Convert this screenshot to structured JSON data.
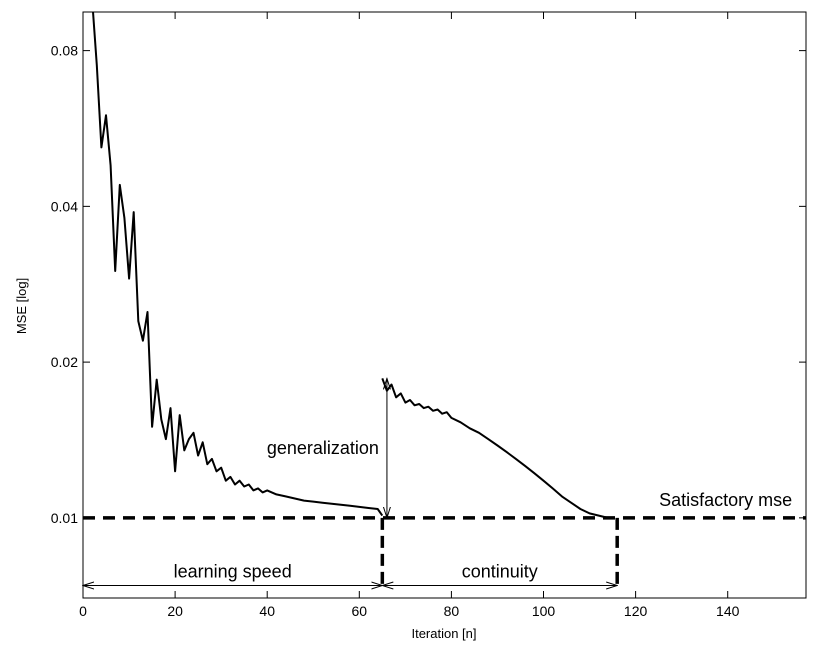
{
  "chart_data": {
    "type": "line",
    "xlabel": "Iteration [n]",
    "ylabel": "MSE [log]",
    "xlim": [
      0,
      157
    ],
    "ylim": [
      0.007,
      0.095
    ],
    "xscale": "linear",
    "yscale": "log",
    "xticks": [
      0,
      20,
      40,
      60,
      80,
      100,
      120,
      140
    ],
    "yticks": [
      0.01,
      0.02,
      0.04,
      0.08
    ],
    "ytick_labels": [
      "0.01",
      "0.02",
      "0.04",
      "0.08"
    ],
    "grid": false,
    "series": [
      {
        "style": "solid",
        "x": [
          2,
          3,
          4,
          5,
          6,
          7,
          8,
          9,
          10,
          11,
          12,
          13,
          14,
          15,
          16,
          17,
          18,
          19,
          20,
          21,
          22,
          23,
          24,
          25,
          26,
          27,
          28,
          29,
          30,
          31,
          32,
          33,
          34,
          35,
          36,
          37,
          38,
          39,
          40,
          42,
          44,
          46,
          48,
          50,
          52,
          54,
          56,
          58,
          60,
          62,
          64,
          65
        ],
        "y": [
          0.1,
          0.075,
          0.052,
          0.06,
          0.048,
          0.03,
          0.044,
          0.038,
          0.029,
          0.039,
          0.024,
          0.022,
          0.025,
          0.015,
          0.0185,
          0.0155,
          0.0142,
          0.0163,
          0.0123,
          0.0158,
          0.0135,
          0.0142,
          0.0146,
          0.0132,
          0.014,
          0.0127,
          0.013,
          0.0123,
          0.0125,
          0.0118,
          0.012,
          0.0116,
          0.0118,
          0.0115,
          0.0116,
          0.0113,
          0.0114,
          0.0112,
          0.0113,
          0.0111,
          0.011,
          0.0109,
          0.0108,
          0.01075,
          0.0107,
          0.01065,
          0.0106,
          0.01055,
          0.0105,
          0.01045,
          0.0104,
          0.0101
        ]
      },
      {
        "style": "solid",
        "x": [
          65,
          66,
          67,
          68,
          69,
          70,
          71,
          72,
          73,
          74,
          75,
          76,
          77,
          78,
          79,
          80,
          82,
          84,
          86,
          88,
          90,
          92,
          94,
          96,
          98,
          100,
          102,
          104,
          106,
          108,
          110,
          112,
          114,
          115
        ],
        "y": [
          0.0186,
          0.0176,
          0.0181,
          0.0171,
          0.0174,
          0.0167,
          0.0169,
          0.0165,
          0.0166,
          0.0163,
          0.0164,
          0.0161,
          0.0162,
          0.0159,
          0.016,
          0.0156,
          0.0153,
          0.0149,
          0.0146,
          0.0142,
          0.0138,
          0.0134,
          0.013,
          0.0126,
          0.0122,
          0.0118,
          0.0114,
          0.011,
          0.0107,
          0.0104,
          0.0102,
          0.0101,
          0.01,
          0.01
        ]
      }
    ],
    "reference_line": {
      "y": 0.01,
      "style": "dashed",
      "label": "Satisfactory mse"
    },
    "dashed_verticals": [
      {
        "x": 65,
        "y_from": 0.01,
        "y_to": 0.0074
      },
      {
        "x": 116,
        "y_from": 0.01,
        "y_to": 0.0074
      }
    ],
    "annotations": [
      {
        "id": "generalization",
        "text": "generalization",
        "kind": "double-arrow-vertical",
        "x": 66,
        "y_from": 0.01,
        "y_to": 0.0186
      },
      {
        "id": "learning-speed",
        "text": "learning speed",
        "kind": "double-arrow-horizontal",
        "y": 0.0074,
        "x_from": 0,
        "x_to": 65
      },
      {
        "id": "continuity",
        "text": "continuity",
        "kind": "double-arrow-horizontal",
        "y": 0.0074,
        "x_from": 65,
        "x_to": 116
      }
    ]
  }
}
